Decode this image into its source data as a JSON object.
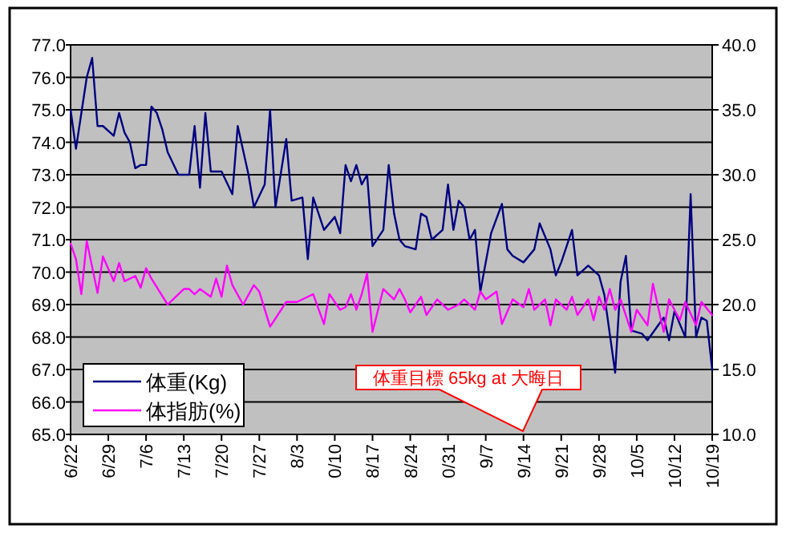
{
  "chart_data": {
    "type": "line",
    "xlim": [
      "--06-22",
      "--10-19"
    ],
    "xticks": [
      {
        "value": "--06-22",
        "label": "6/22"
      },
      {
        "value": "--06-29",
        "label": "6/29"
      },
      {
        "value": "--07-06",
        "label": "7/6"
      },
      {
        "value": "--07-13",
        "label": "7/13"
      },
      {
        "value": "--07-20",
        "label": "7/20"
      },
      {
        "value": "--07-27",
        "label": "7/27"
      },
      {
        "value": "--08-03",
        "label": "8/3"
      },
      {
        "value": "--08-10",
        "label": "0/10"
      },
      {
        "value": "--08-17",
        "label": "8/17"
      },
      {
        "value": "--08-24",
        "label": "8/24"
      },
      {
        "value": "--08-31",
        "label": "0/31"
      },
      {
        "value": "--09-07",
        "label": "9/7"
      },
      {
        "value": "--09-14",
        "label": "9/14"
      },
      {
        "value": "--09-21",
        "label": "9/21"
      },
      {
        "value": "--09-28",
        "label": "9/28"
      },
      {
        "value": "--10-05",
        "label": "10/5"
      },
      {
        "value": "--10-12",
        "label": "10/12"
      },
      {
        "value": "--10-19",
        "label": "10/19"
      }
    ],
    "ylim": [
      65,
      77
    ],
    "yticks": [
      {
        "value": 65,
        "label": "65.0"
      },
      {
        "value": 66,
        "label": "66.0"
      },
      {
        "value": 67,
        "label": "67.0"
      },
      {
        "value": 68,
        "label": "68.0"
      },
      {
        "value": 69,
        "label": "69.0"
      },
      {
        "value": 70,
        "label": "70.0"
      },
      {
        "value": 71,
        "label": "71.0"
      },
      {
        "value": 72,
        "label": "72.0"
      },
      {
        "value": 73,
        "label": "73.0"
      },
      {
        "value": 74,
        "label": "74.0"
      },
      {
        "value": 75,
        "label": "75.0"
      },
      {
        "value": 76,
        "label": "76.0"
      },
      {
        "value": 77,
        "label": "77.0"
      }
    ],
    "y2lim": [
      10,
      40
    ],
    "y2ticks": [
      {
        "value": 10,
        "label": "10.0"
      },
      {
        "value": 15,
        "label": "15.0"
      },
      {
        "value": 20,
        "label": "20.0"
      },
      {
        "value": 25,
        "label": "25.0"
      },
      {
        "value": 30,
        "label": "30.0"
      },
      {
        "value": 35,
        "label": "35.0"
      },
      {
        "value": 40,
        "label": "40.0"
      }
    ],
    "grid": "y",
    "legend": "bottom left",
    "marker": "none",
    "line_style": "solid",
    "annotations": [
      "体重目標 65kg at 大晦日"
    ],
    "series": [
      {
        "name": "体重(Kg)",
        "color": "#000080",
        "axis": "y",
        "x": [
          "--06-22",
          "--06-23",
          "--06-24",
          "--06-25",
          "--06-26",
          "--06-27",
          "--06-28",
          "--06-30",
          "--07-01",
          "--07-02",
          "--07-03",
          "--07-04",
          "--07-05",
          "--07-06",
          "--07-07",
          "--07-08",
          "--07-09",
          "--07-10",
          "--07-12",
          "--07-14",
          "--07-15",
          "--07-16",
          "--07-17",
          "--07-18",
          "--07-20",
          "--07-22",
          "--07-23",
          "--07-25",
          "--07-26",
          "--07-28",
          "--07-29",
          "--07-30",
          "--08-01",
          "--08-02",
          "--08-04",
          "--08-05",
          "--08-06",
          "--08-08",
          "--08-10",
          "--08-11",
          "--08-12",
          "--08-13",
          "--08-14",
          "--08-15",
          "--08-16",
          "--08-17",
          "--08-19",
          "--08-20",
          "--08-21",
          "--08-22",
          "--08-23",
          "--08-25",
          "--08-26",
          "--08-27",
          "--08-28",
          "--08-30",
          "--08-31",
          "--09-01",
          "--09-02",
          "--09-03",
          "--09-04",
          "--09-05",
          "--09-06",
          "--09-08",
          "--09-10",
          "--09-11",
          "--09-12",
          "--09-14",
          "--09-16",
          "--09-17",
          "--09-19",
          "--09-20",
          "--09-21",
          "--09-23",
          "--09-24",
          "--09-26",
          "--09-28",
          "--09-29",
          "--10-01",
          "--10-02",
          "--10-03",
          "--10-04",
          "--10-06",
          "--10-07",
          "--10-10",
          "--10-11",
          "--10-12",
          "--10-14",
          "--10-15",
          "--10-16",
          "--10-17",
          "--10-18",
          "--10-19"
        ],
        "values": [
          75.0,
          73.8,
          74.9,
          76.0,
          76.6,
          74.5,
          74.5,
          74.2,
          74.9,
          74.3,
          74.0,
          73.2,
          73.3,
          73.3,
          75.1,
          74.9,
          74.4,
          73.7,
          73.0,
          73.0,
          74.5,
          72.6,
          74.9,
          73.1,
          73.1,
          72.4,
          74.5,
          73.0,
          72.0,
          72.7,
          75.0,
          72.0,
          74.1,
          72.2,
          72.3,
          70.4,
          72.3,
          71.3,
          71.7,
          71.2,
          73.3,
          72.8,
          73.3,
          72.7,
          73.0,
          70.8,
          71.3,
          73.3,
          71.8,
          71.0,
          70.8,
          70.7,
          71.8,
          71.7,
          71.0,
          71.3,
          72.7,
          71.3,
          72.2,
          72.0,
          71.0,
          71.3,
          69.4,
          71.2,
          72.1,
          70.7,
          70.5,
          70.3,
          70.7,
          71.5,
          70.7,
          69.9,
          70.3,
          71.3,
          69.9,
          70.2,
          69.9,
          69.3,
          66.9,
          69.7,
          70.5,
          68.2,
          68.1,
          67.9,
          68.6,
          67.9,
          68.8,
          68.0,
          72.4,
          68.0,
          68.6,
          68.5,
          67.0
        ]
      },
      {
        "name": "体指肪(%)",
        "color": "#ff00ff",
        "axis": "y2",
        "x": [
          "--06-22",
          "--06-23",
          "--06-24",
          "--06-25",
          "--06-27",
          "--06-28",
          "--06-30",
          "--07-01",
          "--07-02",
          "--07-04",
          "--07-05",
          "--07-06",
          "--07-07",
          "--07-10",
          "--07-11",
          "--07-13",
          "--07-14",
          "--07-15",
          "--07-16",
          "--07-18",
          "--07-19",
          "--07-20",
          "--07-21",
          "--07-22",
          "--07-24",
          "--07-26",
          "--07-27",
          "--07-29",
          "--08-01",
          "--08-03",
          "--08-06",
          "--08-08",
          "--08-09",
          "--08-11",
          "--08-12",
          "--08-13",
          "--08-14",
          "--08-15",
          "--08-16",
          "--08-17",
          "--08-19",
          "--08-21",
          "--08-22",
          "--08-23",
          "--08-24",
          "--08-26",
          "--08-27",
          "--08-29",
          "--08-31",
          "--09-02",
          "--09-03",
          "--09-05",
          "--09-06",
          "--09-07",
          "--09-09",
          "--09-10",
          "--09-12",
          "--09-14",
          "--09-15",
          "--09-16",
          "--09-18",
          "--09-19",
          "--09-20",
          "--09-22",
          "--09-23",
          "--09-24",
          "--09-26",
          "--09-27",
          "--09-28",
          "--09-29",
          "--09-30",
          "--10-01",
          "--10-02",
          "--10-04",
          "--10-05",
          "--10-07",
          "--10-08",
          "--10-10",
          "--10-11",
          "--10-13",
          "--10-14",
          "--10-16",
          "--10-17",
          "--10-19"
        ],
        "values": [
          24.7,
          23.5,
          20.8,
          24.9,
          20.9,
          23.7,
          21.8,
          23.2,
          21.8,
          22.2,
          21.3,
          22.8,
          22.0,
          20.0,
          20.4,
          21.2,
          21.2,
          20.8,
          21.2,
          20.6,
          22.0,
          20.6,
          23.0,
          21.5,
          20.0,
          21.5,
          21.0,
          18.3,
          20.2,
          20.2,
          20.8,
          18.5,
          20.8,
          19.6,
          19.8,
          20.8,
          19.6,
          20.8,
          22.4,
          17.9,
          21.2,
          20.4,
          21.2,
          20.4,
          19.4,
          20.6,
          19.2,
          20.4,
          19.6,
          20.0,
          20.4,
          19.6,
          21.0,
          20.4,
          21.0,
          18.5,
          20.4,
          19.8,
          21.2,
          19.6,
          20.4,
          18.4,
          20.4,
          19.6,
          20.6,
          19.2,
          20.4,
          18.8,
          20.6,
          19.6,
          21.2,
          19.6,
          20.4,
          17.9,
          19.6,
          18.4,
          21.6,
          17.9,
          20.4,
          18.8,
          20.2,
          18.4,
          20.2,
          19.2
        ]
      }
    ]
  }
}
